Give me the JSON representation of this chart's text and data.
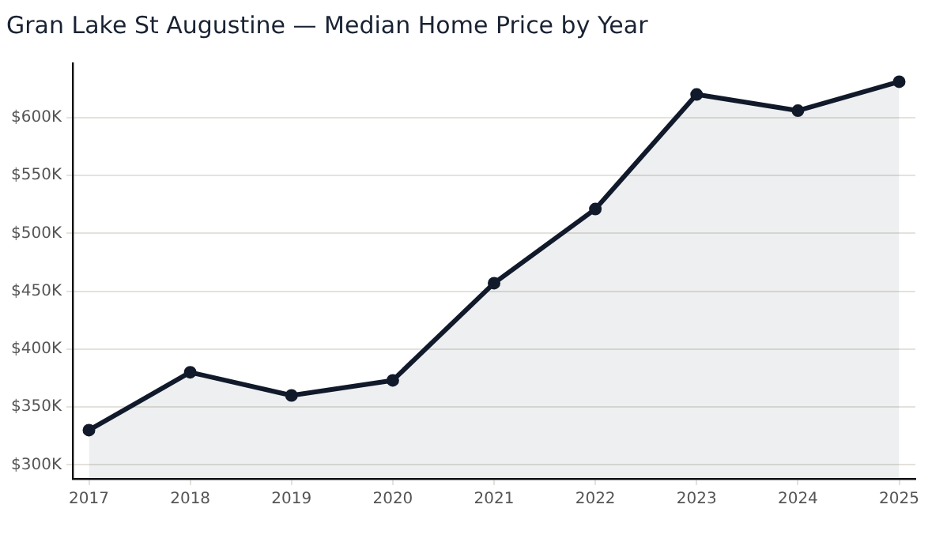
{
  "chart_data": {
    "type": "area",
    "title": "Gran Lake St Augustine — Median Home Price by Year",
    "x": [
      2017,
      2018,
      2019,
      2020,
      2021,
      2022,
      2023,
      2024,
      2025
    ],
    "series": [
      {
        "color": "#111a2b",
        "values": [
          330000,
          380000,
          360000,
          373000,
          457000,
          521000,
          620000,
          606000,
          631000
        ]
      }
    ],
    "xlim": [
      2016.84,
      2025.16
    ],
    "xticks": [
      2017,
      2018,
      2019,
      2020,
      2021,
      2022,
      2023,
      2024,
      2025
    ],
    "ylim": [
      288000,
      647000
    ],
    "yticks": [
      {
        "value": 300000,
        "label": "$300K"
      },
      {
        "value": 350000,
        "label": "$350K"
      },
      {
        "value": 400000,
        "label": "$400K"
      },
      {
        "value": 450000,
        "label": "$450K"
      },
      {
        "value": 500000,
        "label": "$500K"
      },
      {
        "value": 550000,
        "label": "$550K"
      },
      {
        "value": 600000,
        "label": "$600K"
      }
    ],
    "grid": "y",
    "marker": "circle",
    "legend": false
  }
}
